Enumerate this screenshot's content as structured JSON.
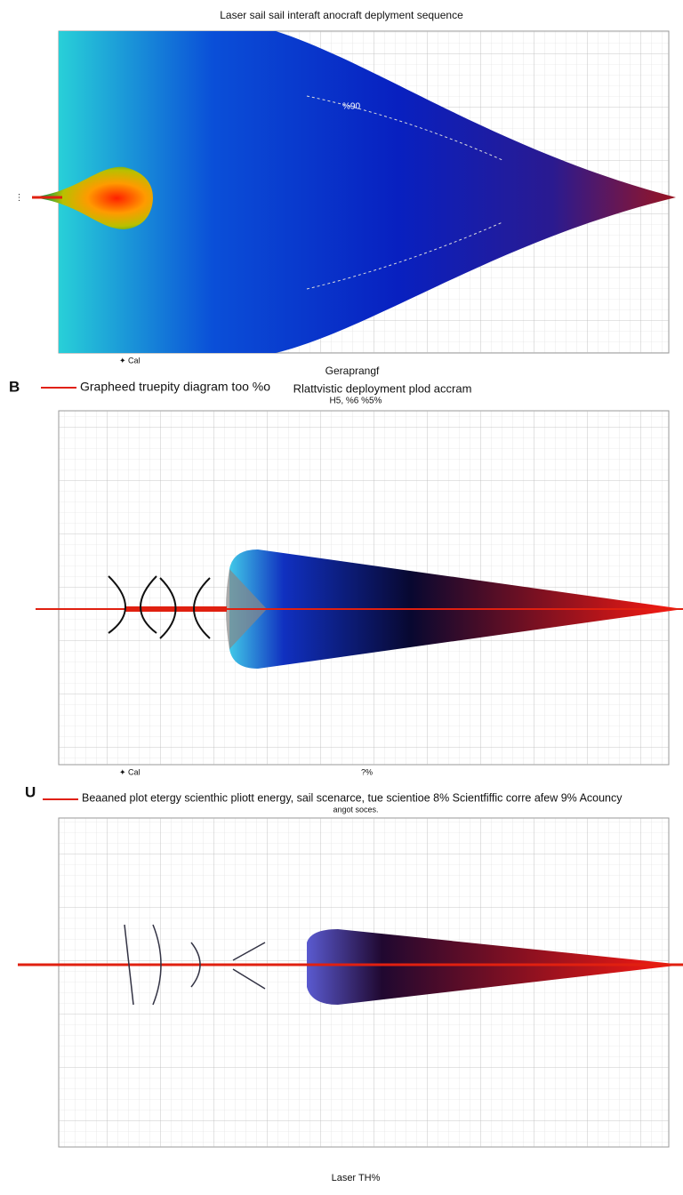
{
  "panel1": {
    "title": "Laser sail sail interaft anocraft deplyment sequence",
    "x_axis_label": "Geraprangf",
    "marker_label": "Cal",
    "annotation": "%90"
  },
  "panel2": {
    "letter": "B",
    "caption": "Grapheed truepity diagram too %o",
    "title": "Rlattvistic deployment plod accram",
    "subtitle": "H5, %6 %5%",
    "marker_label": "Cal",
    "x_note": "?%"
  },
  "panel3": {
    "letter": "U",
    "caption": "Beaaned plot etergy scienthic pliott energy, sail scenarce, tue scientioe 8% Scientfiffic corre afew 9% Acouncy",
    "subtitle": "angot soces.",
    "x_axis_label": "Laser TH%"
  }
}
